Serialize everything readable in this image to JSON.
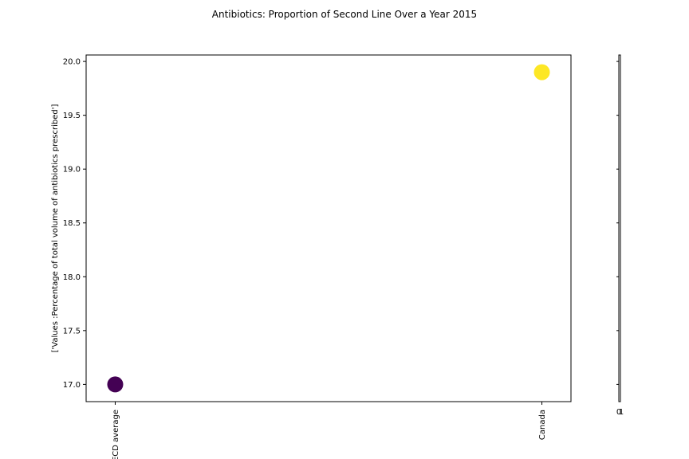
{
  "chart_data": {
    "type": "scatter",
    "title": "Antibiotics: Proportion of Second Line Over a Year 2015",
    "xlabel": "",
    "ylabel": "['Values :Percentage of total volume of antibiotics prescribed']",
    "categories": [
      "OECD average",
      "Canada"
    ],
    "series": [
      {
        "values": [
          17.0,
          19.9
        ]
      }
    ],
    "point_colors": [
      "#440154",
      "#fde725"
    ],
    "ylim": [
      16.84,
      20.06
    ],
    "yticks": [
      17.0,
      17.5,
      18.0,
      18.5,
      19.0,
      19.5,
      20.0
    ],
    "ytick_labels": [
      "17.0",
      "17.5",
      "18.0",
      "18.5",
      "19.0",
      "19.5",
      "20.0"
    ],
    "grid": false,
    "legend": "none",
    "colorbar": {
      "tick_labels": [
        "0",
        "1"
      ]
    }
  }
}
